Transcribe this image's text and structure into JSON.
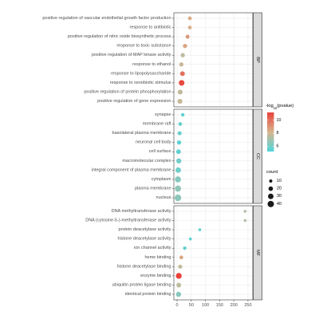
{
  "chart_data": {
    "type": "scatter",
    "xlim": [
      -11.4,
      267
    ],
    "x_ticks": [
      0,
      50,
      100,
      150,
      200,
      250
    ],
    "grid": true,
    "legend_position": "right",
    "color_scale": {
      "title": {
        "main": "-log",
        "sub": "10",
        "tail": "(pvalue)"
      },
      "range": [
        5.2,
        11.2
      ],
      "stops": [
        {
          "value": 5.2,
          "color": "#4fd6dc"
        },
        {
          "value": 8.2,
          "color": "#d8b48e"
        },
        {
          "value": 11.2,
          "color": "#e8423a"
        }
      ],
      "ticks": [
        10,
        8,
        6
      ]
    },
    "size_scale": {
      "title": "count",
      "breaks": [
        10,
        20,
        30,
        40
      ]
    },
    "facets": [
      {
        "strip": "BP",
        "terms": [
          {
            "term": "positive regulation of vascular endothelial growth factor production",
            "x": 45,
            "neg_log10_p": 8.4,
            "count": 14
          },
          {
            "term": "response to antibiotic",
            "x": 45,
            "neg_log10_p": 8.3,
            "count": 14
          },
          {
            "term": "positive regulation of nitric oxide biosynthetic process",
            "x": 37,
            "neg_log10_p": 8.8,
            "count": 16
          },
          {
            "term": "response to toxic substance",
            "x": 28,
            "neg_log10_p": 8.6,
            "count": 18
          },
          {
            "term": "positive regulation of MAP kinase activity",
            "x": 20,
            "neg_log10_p": 7.6,
            "count": 18
          },
          {
            "term": "response to ethanol",
            "x": 15,
            "neg_log10_p": 7.9,
            "count": 18
          },
          {
            "term": "response to lipopolysaccharide",
            "x": 19,
            "neg_log10_p": 10.0,
            "count": 22
          },
          {
            "term": "response to xenobiotic stimulus",
            "x": 16,
            "neg_log10_p": 11.0,
            "count": 32
          },
          {
            "term": "positive regulation of protein phosphorylation",
            "x": 11,
            "neg_log10_p": 7.7,
            "count": 24
          },
          {
            "term": "positive regulation of gene expression",
            "x": 10,
            "neg_log10_p": 7.8,
            "count": 24
          }
        ]
      },
      {
        "strip": "CC",
        "terms": [
          {
            "term": "synapse",
            "x": 20,
            "neg_log10_p": 5.6,
            "count": 12
          },
          {
            "term": "membrane raft",
            "x": 11,
            "neg_log10_p": 5.7,
            "count": 14
          },
          {
            "term": "basolateral plasma membrane",
            "x": 9,
            "neg_log10_p": 5.8,
            "count": 16
          },
          {
            "term": "neuronal cell body",
            "x": 7,
            "neg_log10_p": 5.5,
            "count": 18
          },
          {
            "term": "cell surface",
            "x": 5,
            "neg_log10_p": 5.6,
            "count": 22
          },
          {
            "term": "macromolecular complex",
            "x": 6,
            "neg_log10_p": 6.0,
            "count": 26
          },
          {
            "term": "integral component of plasma membrane",
            "x": 4,
            "neg_log10_p": 5.9,
            "count": 30
          },
          {
            "term": "cytoplasm",
            "x": 3,
            "neg_log10_p": 6.4,
            "count": 36
          },
          {
            "term": "plasma membrane",
            "x": 3,
            "neg_log10_p": 6.6,
            "count": 38
          },
          {
            "term": "nucleus",
            "x": 3,
            "neg_log10_p": 6.5,
            "count": 42
          }
        ]
      },
      {
        "strip": "MF",
        "terms": [
          {
            "term": "DNA methyltransferase activity",
            "x": 240,
            "neg_log10_p": 7.3,
            "count": 8
          },
          {
            "term": "DNA (cytosine-5-)-methyltransferase activity",
            "x": 240,
            "neg_log10_p": 7.3,
            "count": 8
          },
          {
            "term": "protein deacetylase activity",
            "x": 80,
            "neg_log10_p": 5.6,
            "count": 8
          },
          {
            "term": "histone deacetylase activity",
            "x": 47,
            "neg_log10_p": 5.5,
            "count": 9
          },
          {
            "term": "ion channel activity",
            "x": 27,
            "neg_log10_p": 5.7,
            "count": 12
          },
          {
            "term": "heme binding",
            "x": 15,
            "neg_log10_p": 8.6,
            "count": 14
          },
          {
            "term": "histone deacetylase binding",
            "x": 11,
            "neg_log10_p": 7.7,
            "count": 16
          },
          {
            "term": "enzyme binding",
            "x": 6,
            "neg_log10_p": 11.2,
            "count": 34
          },
          {
            "term": "ubiquitin protein ligase binding",
            "x": 6,
            "neg_log10_p": 7.6,
            "count": 22
          },
          {
            "term": "identical protein binding",
            "x": 5,
            "neg_log10_p": 6.4,
            "count": 26
          }
        ]
      }
    ]
  }
}
